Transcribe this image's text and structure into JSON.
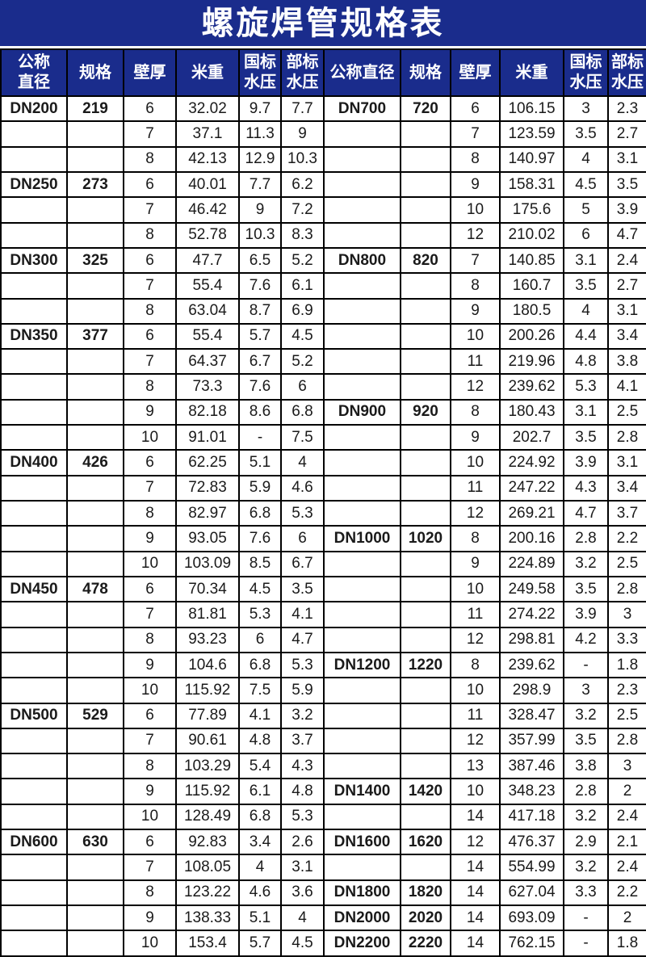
{
  "title": "螺旋焊管规格表",
  "colors": {
    "header_blue": "#1a2c8c",
    "border_black": "#000000",
    "header_text_white": "#ffffff",
    "body_text_dark": "#1a1a1a"
  },
  "header": {
    "left": [
      "公称\n直径",
      "规格",
      "壁厚",
      "米重",
      "国标\n水压",
      "部标\n水压"
    ],
    "right": [
      "公称直径",
      "规格",
      "壁厚",
      "米重",
      "国标\n水压",
      "部标\n水压"
    ]
  },
  "left_rows": [
    [
      "DN200",
      "219",
      "6",
      "32.02",
      "9.7",
      "7.7"
    ],
    [
      "",
      "",
      "7",
      "37.1",
      "11.3",
      "9"
    ],
    [
      "",
      "",
      "8",
      "42.13",
      "12.9",
      "10.3"
    ],
    [
      "DN250",
      "273",
      "6",
      "40.01",
      "7.7",
      "6.2"
    ],
    [
      "",
      "",
      "7",
      "46.42",
      "9",
      "7.2"
    ],
    [
      "",
      "",
      "8",
      "52.78",
      "10.3",
      "8.3"
    ],
    [
      "DN300",
      "325",
      "6",
      "47.7",
      "6.5",
      "5.2"
    ],
    [
      "",
      "",
      "7",
      "55.4",
      "7.6",
      "6.1"
    ],
    [
      "",
      "",
      "8",
      "63.04",
      "8.7",
      "6.9"
    ],
    [
      "DN350",
      "377",
      "6",
      "55.4",
      "5.7",
      "4.5"
    ],
    [
      "",
      "",
      "7",
      "64.37",
      "6.7",
      "5.2"
    ],
    [
      "",
      "",
      "8",
      "73.3",
      "7.6",
      "6"
    ],
    [
      "",
      "",
      "9",
      "82.18",
      "8.6",
      "6.8"
    ],
    [
      "",
      "",
      "10",
      "91.01",
      "-",
      "7.5"
    ],
    [
      "DN400",
      "426",
      "6",
      "62.25",
      "5.1",
      "4"
    ],
    [
      "",
      "",
      "7",
      "72.83",
      "5.9",
      "4.6"
    ],
    [
      "",
      "",
      "8",
      "82.97",
      "6.8",
      "5.3"
    ],
    [
      "",
      "",
      "9",
      "93.05",
      "7.6",
      "6"
    ],
    [
      "",
      "",
      "10",
      "103.09",
      "8.5",
      "6.7"
    ],
    [
      "DN450",
      "478",
      "6",
      "70.34",
      "4.5",
      "3.5"
    ],
    [
      "",
      "",
      "7",
      "81.81",
      "5.3",
      "4.1"
    ],
    [
      "",
      "",
      "8",
      "93.23",
      "6",
      "4.7"
    ],
    [
      "",
      "",
      "9",
      "104.6",
      "6.8",
      "5.3"
    ],
    [
      "",
      "",
      "10",
      "115.92",
      "7.5",
      "5.9"
    ],
    [
      "DN500",
      "529",
      "6",
      "77.89",
      "4.1",
      "3.2"
    ],
    [
      "",
      "",
      "7",
      "90.61",
      "4.8",
      "3.7"
    ],
    [
      "",
      "",
      "8",
      "103.29",
      "5.4",
      "4.3"
    ],
    [
      "",
      "",
      "9",
      "115.92",
      "6.1",
      "4.8"
    ],
    [
      "",
      "",
      "10",
      "128.49",
      "6.8",
      "5.3"
    ],
    [
      "DN600",
      "630",
      "6",
      "92.83",
      "3.4",
      "2.6"
    ],
    [
      "",
      "",
      "7",
      "108.05",
      "4",
      "3.1"
    ],
    [
      "",
      "",
      "8",
      "123.22",
      "4.6",
      "3.6"
    ],
    [
      "",
      "",
      "9",
      "138.33",
      "5.1",
      "4"
    ],
    [
      "",
      "",
      "10",
      "153.4",
      "5.7",
      "4.5"
    ]
  ],
  "right_rows": [
    [
      "DN700",
      "720",
      "6",
      "106.15",
      "3",
      "2.3"
    ],
    [
      "",
      "",
      "7",
      "123.59",
      "3.5",
      "2.7"
    ],
    [
      "",
      "",
      "8",
      "140.97",
      "4",
      "3.1"
    ],
    [
      "",
      "",
      "9",
      "158.31",
      "4.5",
      "3.5"
    ],
    [
      "",
      "",
      "10",
      "175.6",
      "5",
      "3.9"
    ],
    [
      "",
      "",
      "12",
      "210.02",
      "6",
      "4.7"
    ],
    [
      "DN800",
      "820",
      "7",
      "140.85",
      "3.1",
      "2.4"
    ],
    [
      "",
      "",
      "8",
      "160.7",
      "3.5",
      "2.7"
    ],
    [
      "",
      "",
      "9",
      "180.5",
      "4",
      "3.1"
    ],
    [
      "",
      "",
      "10",
      "200.26",
      "4.4",
      "3.4"
    ],
    [
      "",
      "",
      "11",
      "219.96",
      "4.8",
      "3.8"
    ],
    [
      "",
      "",
      "12",
      "239.62",
      "5.3",
      "4.1"
    ],
    [
      "DN900",
      "920",
      "8",
      "180.43",
      "3.1",
      "2.5"
    ],
    [
      "",
      "",
      "9",
      "202.7",
      "3.5",
      "2.8"
    ],
    [
      "",
      "",
      "10",
      "224.92",
      "3.9",
      "3.1"
    ],
    [
      "",
      "",
      "11",
      "247.22",
      "4.3",
      "3.4"
    ],
    [
      "",
      "",
      "12",
      "269.21",
      "4.7",
      "3.7"
    ],
    [
      "DN1000",
      "1020",
      "8",
      "200.16",
      "2.8",
      "2.2"
    ],
    [
      "",
      "",
      "9",
      "224.89",
      "3.2",
      "2.5"
    ],
    [
      "",
      "",
      "10",
      "249.58",
      "3.5",
      "2.8"
    ],
    [
      "",
      "",
      "11",
      "274.22",
      "3.9",
      "3"
    ],
    [
      "",
      "",
      "12",
      "298.81",
      "4.2",
      "3.3"
    ],
    [
      "DN1200",
      "1220",
      "8",
      "239.62",
      "-",
      "1.8"
    ],
    [
      "",
      "",
      "10",
      "298.9",
      "3",
      "2.3"
    ],
    [
      "",
      "",
      "11",
      "328.47",
      "3.2",
      "2.5"
    ],
    [
      "",
      "",
      "12",
      "357.99",
      "3.5",
      "2.8"
    ],
    [
      "",
      "",
      "13",
      "387.46",
      "3.8",
      "3"
    ],
    [
      "DN1400",
      "1420",
      "10",
      "348.23",
      "2.8",
      "2"
    ],
    [
      "",
      "",
      "14",
      "417.18",
      "3.2",
      "2.4"
    ],
    [
      "DN1600",
      "1620",
      "12",
      "476.37",
      "2.9",
      "2.1"
    ],
    [
      "",
      "",
      "14",
      "554.99",
      "3.2",
      "2.4"
    ],
    [
      "DN1800",
      "1820",
      "14",
      "627.04",
      "3.3",
      "2.2"
    ],
    [
      "DN2000",
      "2020",
      "14",
      "693.09",
      "-",
      "2"
    ],
    [
      "DN2200",
      "2220",
      "14",
      "762.15",
      "-",
      "1.8"
    ]
  ]
}
